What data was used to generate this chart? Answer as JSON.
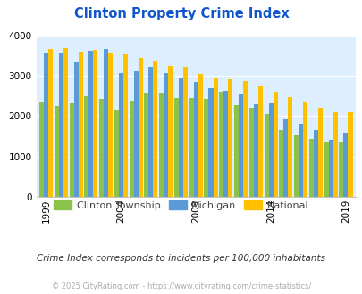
{
  "title": "Clinton Property Crime Index",
  "title_color": "#1155cc",
  "subtitle": "Crime Index corresponds to incidents per 100,000 inhabitants",
  "footer": "© 2025 CityRating.com - https://www.cityrating.com/crime-statistics/",
  "years": [
    1999,
    2000,
    2001,
    2002,
    2003,
    2004,
    2005,
    2006,
    2007,
    2008,
    2009,
    2010,
    2011,
    2012,
    2013,
    2014,
    2015,
    2016,
    2017,
    2018,
    2019
  ],
  "clinton": [
    2360,
    2240,
    2320,
    2490,
    2420,
    2160,
    2390,
    2580,
    2590,
    2440,
    2450,
    2420,
    2600,
    2270,
    2210,
    2050,
    1660,
    1520,
    1440,
    1360,
    1370
  ],
  "michigan": [
    3560,
    3560,
    3340,
    3620,
    3650,
    3060,
    3100,
    3210,
    3070,
    2960,
    2840,
    2680,
    2630,
    2530,
    2290,
    2310,
    1930,
    1810,
    1650,
    1420,
    1580
  ],
  "national": [
    3650,
    3680,
    3590,
    3640,
    3580,
    3520,
    3440,
    3380,
    3250,
    3210,
    3040,
    2960,
    2910,
    2870,
    2730,
    2600,
    2480,
    2360,
    2200,
    2100,
    2090
  ],
  "color_clinton": "#8bc34a",
  "color_michigan": "#5b9bd5",
  "color_national": "#ffc000",
  "bg_color": "#ddeeff",
  "ylim": [
    0,
    4000
  ],
  "yticks": [
    0,
    1000,
    2000,
    3000,
    4000
  ],
  "xtick_years": [
    1999,
    2004,
    2009,
    2014,
    2019
  ]
}
